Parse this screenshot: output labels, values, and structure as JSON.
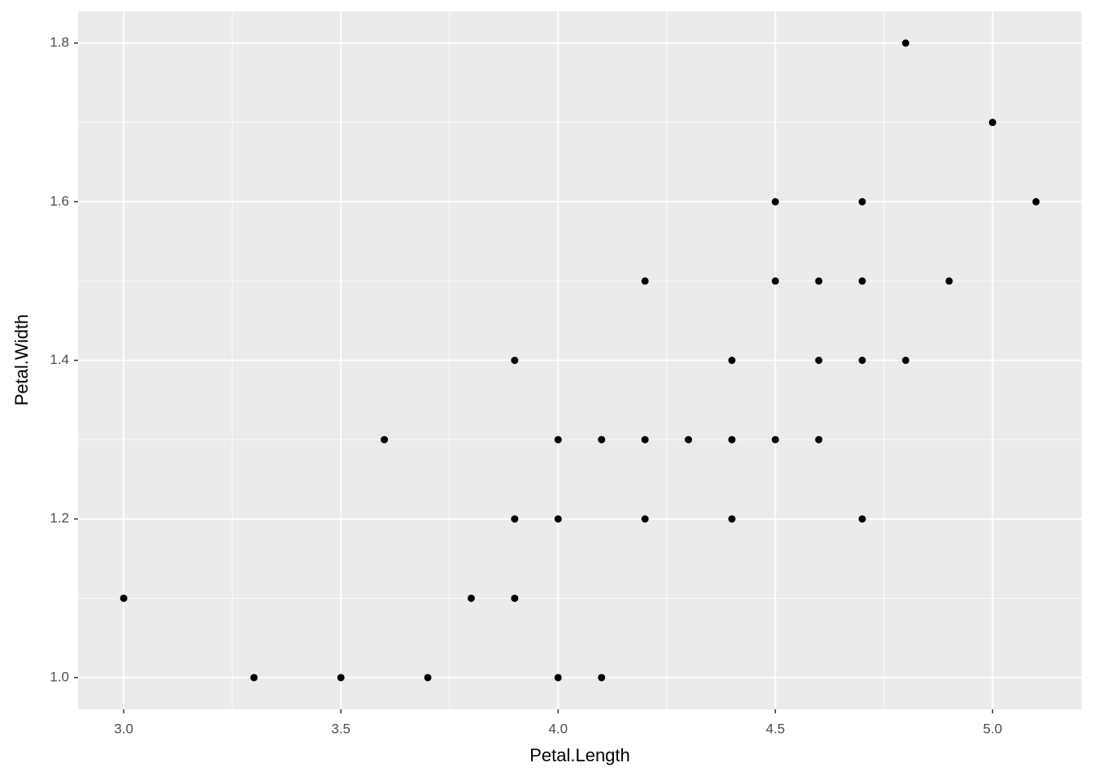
{
  "chart_data": {
    "type": "scatter",
    "x_label": "Petal.Length",
    "y_label": "Petal.Width",
    "x": [
      3.0,
      3.3,
      3.5,
      3.6,
      3.7,
      3.8,
      3.9,
      3.9,
      3.9,
      4.0,
      4.0,
      4.0,
      4.1,
      4.1,
      4.2,
      4.2,
      4.2,
      4.3,
      4.4,
      4.4,
      4.4,
      4.5,
      4.5,
      4.5,
      4.6,
      4.6,
      4.6,
      4.7,
      4.7,
      4.7,
      4.7,
      4.8,
      4.8,
      4.9,
      5.0,
      5.1
    ],
    "values": [
      1.1,
      1.0,
      1.0,
      1.3,
      1.0,
      1.1,
      1.1,
      1.2,
      1.4,
      1.0,
      1.2,
      1.3,
      1.0,
      1.3,
      1.2,
      1.3,
      1.5,
      1.3,
      1.2,
      1.3,
      1.4,
      1.3,
      1.5,
      1.6,
      1.3,
      1.4,
      1.5,
      1.2,
      1.4,
      1.5,
      1.6,
      1.4,
      1.8,
      1.5,
      1.7,
      1.6
    ],
    "color": "#000000",
    "xlim": [
      2.895,
      5.205
    ],
    "ylim": [
      0.96,
      1.84
    ],
    "xticks": [
      {
        "value": 3.0,
        "label": "3.0"
      },
      3.5,
      {
        "value": 4.0,
        "label": "4.0"
      },
      4.5,
      {
        "value": 5.0,
        "label": "5.0"
      }
    ],
    "yticks": [
      {
        "value": 1.0,
        "label": "1.0"
      },
      1.2,
      1.4,
      1.6,
      1.8
    ],
    "grid": true,
    "minor_grid": true
  }
}
